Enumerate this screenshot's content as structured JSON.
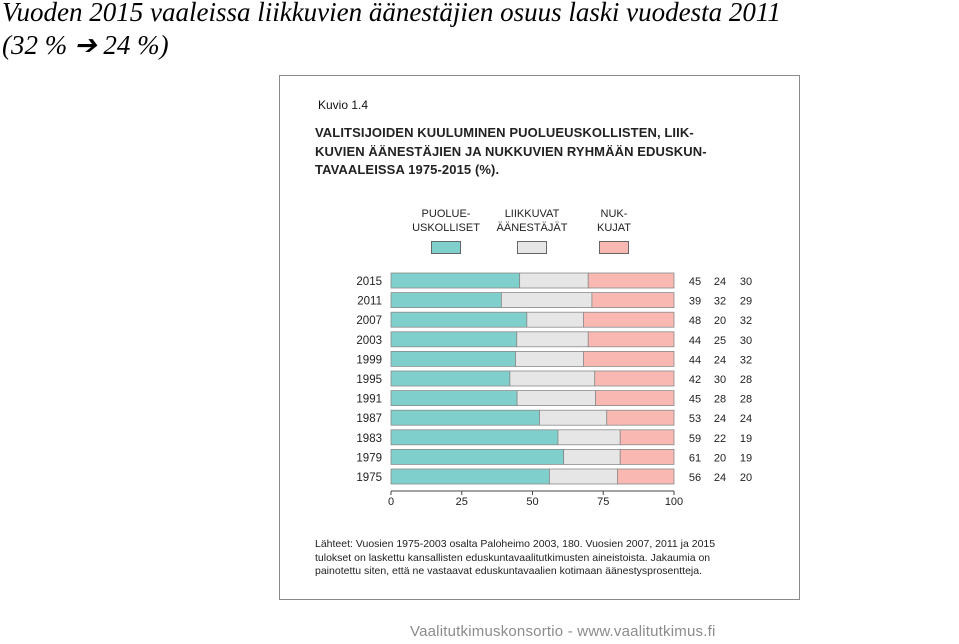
{
  "slide": {
    "title_line1": "Vuoden 2015 vaaleissa liikkuvien äänestäjien osuus laski vuodesta 2011",
    "title_line2": "(32 % ➔ 24 %)",
    "footer": "Vaalitutkimuskonsortio - www.vaalitutkimus.fi"
  },
  "figure": {
    "label": "Kuvio 1.4",
    "title_lines": [
      "VALITSIJOIDEN KUULUMINEN PUOLUEUSKOLLISTEN, LIIK-",
      "KUVIEN ÄÄNESTÄJIEN JA NUKKUVIEN RYHMÄÄN EDUSKUN-",
      "TAVAALEISSA 1975-2015 (%)."
    ],
    "source_lines": [
      "Lähteet: Vuosien 1975-2003 osalta Paloheimo 2003, 180. Vuosien 2007, 2011 ja 2015",
      "tulokset on laskettu kansallisten eduskuntavaalitutkimusten aineistoista. Jakaumia on",
      "painotettu siten, että ne vastaavat eduskuntavaalien kotimaan äänestysprosentteja."
    ]
  },
  "colors": {
    "puolueuskolliset": "#7fcfcc",
    "liikkuvat": "#e6e6e6",
    "nukkujat": "#f9b9b2",
    "bar_stroke": "#8a8a8a"
  },
  "chart_data": {
    "type": "bar",
    "orientation": "horizontal",
    "stacked": true,
    "categories": [
      "2015",
      "2011",
      "2007",
      "2003",
      "1999",
      "1995",
      "1991",
      "1987",
      "1983",
      "1979",
      "1975"
    ],
    "series": [
      {
        "name": "PUOLUE-\nUSKOLLISET",
        "values": [
          45,
          39,
          48,
          44,
          44,
          42,
          45,
          53,
          59,
          61,
          56
        ]
      },
      {
        "name": "LIIKKUVAT\nÄÄNESTÄJÄT",
        "values": [
          24,
          32,
          20,
          25,
          24,
          30,
          28,
          24,
          22,
          20,
          24
        ]
      },
      {
        "name": "NUK-\nKUJAT",
        "values": [
          30,
          29,
          32,
          30,
          32,
          28,
          28,
          24,
          19,
          19,
          20
        ]
      }
    ],
    "xlim": [
      0,
      100
    ],
    "xticks": [
      0,
      25,
      50,
      75,
      100
    ],
    "legend_position": "top",
    "value_labels_position": "right",
    "grid": false
  }
}
